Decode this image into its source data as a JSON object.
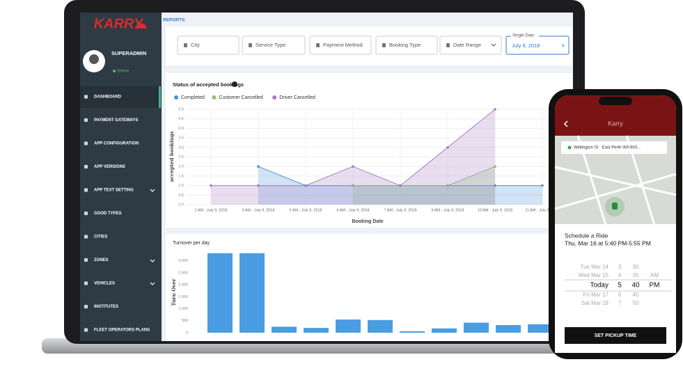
{
  "sidebar": {
    "logo": "KARRY",
    "user": {
      "name": "SUPERADMIN",
      "status": "Online"
    },
    "menu": [
      "DASHBOARD",
      "PAYMENT GATEWAYS",
      "APP CONFIGURATION",
      "APP VERSIONS",
      "APP TEXT SETTING",
      "GOOD TYPES",
      "CITIES",
      "ZONES",
      "VEHICLES",
      "INSTITUTES",
      "FLEET OPERATORS PLANS"
    ]
  },
  "header": {
    "title": "REPORTS"
  },
  "filters": [
    "City",
    "Service Type",
    "Payment Method",
    "Booking Type",
    "Date Range"
  ],
  "single_date": {
    "label": "Single Date",
    "value": "July 9, 2018",
    "clear": "×"
  },
  "chart_data": [
    {
      "type": "line",
      "title": "Status of accepted bookings",
      "y_label": "accepted bookings",
      "x_label": "Booking Date",
      "categories": [
        "1 AM - July 9, 2018",
        "3 AM - July 9, 2018",
        "5 AM - July 9, 2018",
        "6 AM - July 9, 2018",
        "7 AM - July 9, 2018",
        "9 AM - July 9, 2018",
        "10 AM - July 9, 2018",
        "11 AM - July 9, 2018"
      ],
      "series": [
        {
          "name": "Completed",
          "color": "#4a90d9",
          "values": [
            null,
            2,
            1,
            1,
            1,
            1,
            1,
            1
          ]
        },
        {
          "name": "Customer Cancelled",
          "color": "#8dc26f",
          "values": [
            null,
            null,
            null,
            1,
            1,
            1,
            2,
            null
          ]
        },
        {
          "name": "Driver Cancelled",
          "color": "#a57cc5",
          "values": [
            1,
            1,
            1,
            2,
            1,
            3,
            5,
            null
          ]
        }
      ],
      "ylim": [
        0,
        5
      ],
      "yticks": [
        {
          "value": 0,
          "label": "0.0"
        },
        0.5,
        {
          "value": 1,
          "label": "1.0"
        },
        1.5,
        {
          "value": 2,
          "label": "2.0"
        },
        2.5,
        {
          "value": 3,
          "label": "3.0"
        },
        3.5,
        {
          "value": 4,
          "label": "4.0"
        },
        4.5,
        {
          "value": 5,
          "label": "5.0"
        }
      ],
      "grid": true
    },
    {
      "type": "bar",
      "title": "Turnover per day",
      "y_label": "Turn Over",
      "color": "#4a9de2",
      "values": [
        3320,
        3320,
        250,
        200,
        550,
        530,
        60,
        180,
        420,
        320,
        350
      ],
      "ylim": [
        0,
        3400
      ],
      "yticks": [
        0,
        500,
        {
          "value": 1000,
          "label": "1,000"
        },
        {
          "value": 1500,
          "label": "1,500"
        },
        {
          "value": 2000,
          "label": "2,000"
        },
        {
          "value": 2500,
          "label": "2,500"
        },
        {
          "value": 3000,
          "label": "3,000"
        }
      ],
      "grid": false
    }
  ],
  "phone": {
    "title": "Karry",
    "address": "Wellington St · East Perth WA 600...",
    "schedule_title": "Schedule a Ride",
    "schedule_time": "Thu, Mar 16 at 5:40 PM-5:55 PM",
    "picker": [
      [
        "Tue Mar 14",
        3,
        30
      ],
      [
        "Wed Mar 15",
        4,
        35,
        "AM"
      ],
      [
        "Today",
        5,
        40,
        "PM"
      ],
      [
        "Fri Mar 17",
        6,
        45
      ],
      [
        "Sat Mar 18",
        7,
        50
      ]
    ],
    "button": "SET PICKUP TIME"
  }
}
